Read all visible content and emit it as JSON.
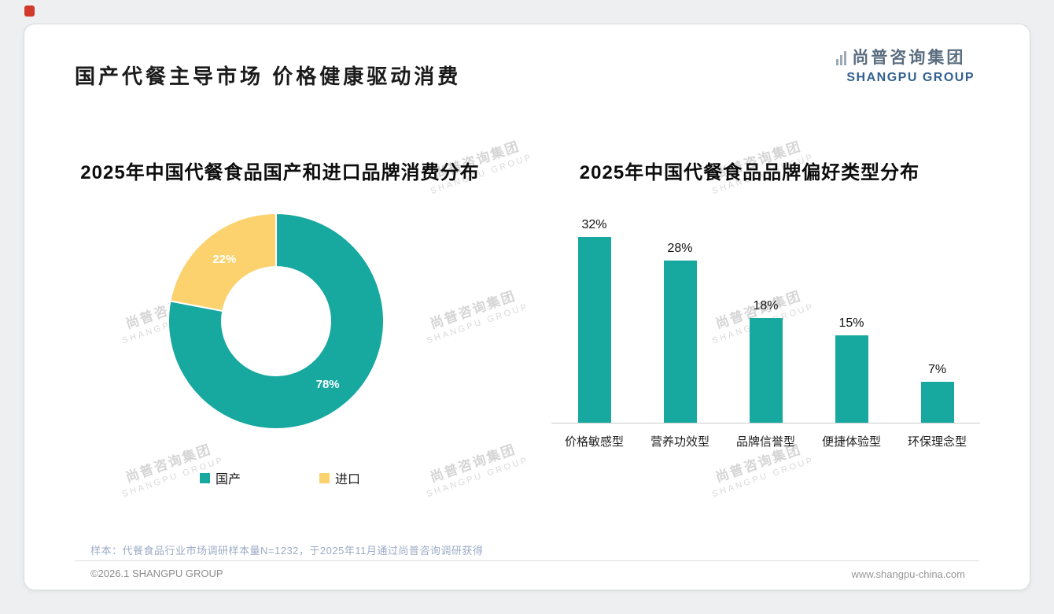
{
  "page": {
    "title": "国产代餐主导市场 价格健康驱动消费",
    "logo": {
      "cn": "尚普咨询集团",
      "en": "SHANGPU GROUP"
    },
    "watermark": {
      "line1": "尚普咨询集团",
      "line2": "SHANGPU GROUP"
    },
    "sample_note": "样本：代餐食品行业市场调研样本量N=1232，于2025年11月通过尚普咨询调研获得",
    "footer_left": "©2026.1 SHANGPU GROUP",
    "footer_right": "www.shangpu-china.com"
  },
  "colors": {
    "teal": "#17a8a0",
    "yellow": "#fbd26e",
    "logo_blue": "#33618f",
    "accent_red": "#d03a2c"
  },
  "chart_data": [
    {
      "type": "pie",
      "donut": true,
      "title": "2025年中国代餐食品国产和进口品牌消费分布",
      "labels": [
        "国产",
        "进口"
      ],
      "values": [
        78,
        22
      ],
      "unit": "%",
      "colors": [
        "#17a8a0",
        "#fbd26e"
      ],
      "legend_position": "bottom",
      "data_labels": [
        "78%",
        "22%"
      ]
    },
    {
      "type": "bar",
      "title": "2025年中国代餐食品品牌偏好类型分布",
      "categories": [
        "价格敏感型",
        "营养功效型",
        "品牌信誉型",
        "便捷体验型",
        "环保理念型"
      ],
      "values": [
        32,
        28,
        18,
        15,
        7
      ],
      "unit": "%",
      "bar_color": "#17a8a0",
      "ylim": [
        0,
        35
      ],
      "grid": false,
      "data_labels": true,
      "axis_shown": "x-only"
    }
  ]
}
